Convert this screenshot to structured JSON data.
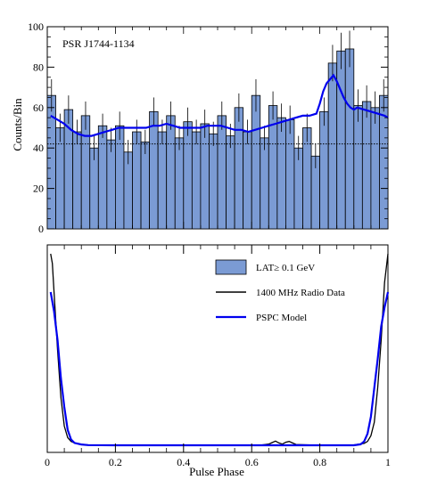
{
  "chart_data": [
    {
      "type": "bar",
      "annotation": "PSR J1744-1134",
      "ylabel": "Counts/Bin",
      "xlim": [
        0,
        1
      ],
      "ylim": [
        0,
        100
      ],
      "yticks": [
        0,
        20,
        40,
        60,
        80,
        100
      ],
      "baseline": 42,
      "x": [
        0.0125,
        0.0375,
        0.0625,
        0.0875,
        0.1125,
        0.1375,
        0.1625,
        0.1875,
        0.2125,
        0.2375,
        0.2625,
        0.2875,
        0.3125,
        0.3375,
        0.3625,
        0.3875,
        0.4125,
        0.4375,
        0.4625,
        0.4875,
        0.5125,
        0.5375,
        0.5625,
        0.5875,
        0.6125,
        0.6375,
        0.6625,
        0.6875,
        0.7125,
        0.7375,
        0.7625,
        0.7875,
        0.8125,
        0.8375,
        0.8625,
        0.8875,
        0.9125,
        0.9375,
        0.9625,
        0.9875
      ],
      "series": [
        {
          "values": [
            66,
            50,
            59,
            48,
            56,
            40,
            51,
            44,
            51,
            38,
            48,
            43,
            58,
            48,
            56,
            45,
            53,
            48,
            52,
            47,
            56,
            46,
            60,
            48,
            66,
            45,
            61,
            55,
            54,
            40,
            50,
            36,
            58,
            82,
            88,
            89,
            61,
            63,
            60,
            66
          ],
          "errors": [
            8,
            7,
            7,
            6,
            7,
            6,
            6,
            6,
            7,
            6,
            6,
            6,
            7,
            6,
            7,
            6,
            7,
            6,
            7,
            6,
            7,
            6,
            7,
            6,
            8,
            6,
            7,
            7,
            7,
            6,
            7,
            6,
            7,
            9,
            9,
            9,
            8,
            8,
            8,
            8
          ]
        },
        {
          "name": "PSPC Model",
          "x": [
            0.01,
            0.03,
            0.05,
            0.07,
            0.09,
            0.11,
            0.13,
            0.15,
            0.17,
            0.19,
            0.21,
            0.23,
            0.25,
            0.27,
            0.29,
            0.31,
            0.33,
            0.35,
            0.37,
            0.39,
            0.41,
            0.43,
            0.45,
            0.47,
            0.49,
            0.51,
            0.53,
            0.55,
            0.57,
            0.59,
            0.61,
            0.63,
            0.65,
            0.67,
            0.69,
            0.71,
            0.73,
            0.75,
            0.77,
            0.79,
            0.8,
            0.81,
            0.82,
            0.83,
            0.84,
            0.85,
            0.86,
            0.87,
            0.88,
            0.89,
            0.9,
            0.91,
            0.93,
            0.95,
            0.97,
            0.99,
            1.0
          ],
          "values": [
            56,
            54,
            52,
            49,
            47,
            46,
            46,
            47,
            48,
            49,
            50,
            50,
            50,
            50,
            50,
            51,
            51,
            52,
            51,
            50,
            50,
            50,
            50,
            51,
            51,
            51,
            50,
            49,
            49,
            48,
            49,
            50,
            51,
            52,
            53,
            54,
            55,
            56,
            56,
            57,
            62,
            68,
            72,
            74,
            76,
            73,
            69,
            65,
            62,
            60,
            59,
            60,
            59,
            58,
            57,
            56,
            55
          ]
        }
      ]
    },
    {
      "type": "line",
      "xlabel": "Pulse Phase",
      "xlim": [
        0,
        1
      ],
      "ylim": [
        0,
        1
      ],
      "xticks": [
        0,
        0.2,
        0.4,
        0.6,
        0.8,
        1
      ],
      "xtick_labels": [
        "0",
        "0.2",
        "0.4",
        "0.6",
        "0.8",
        "1"
      ],
      "legend_position": "top-right",
      "series": [
        {
          "name": "LAT≥ 0.1 GeV",
          "style": "filled-box"
        },
        {
          "name": "1400 MHz Radio Data",
          "x": [
            0.01,
            0.015,
            0.02,
            0.03,
            0.04,
            0.05,
            0.06,
            0.07,
            0.08,
            0.1,
            0.12,
            0.14,
            0.2,
            0.4,
            0.6,
            0.63,
            0.65,
            0.66,
            0.67,
            0.68,
            0.69,
            0.7,
            0.71,
            0.72,
            0.73,
            0.8,
            0.9,
            0.93,
            0.94,
            0.95,
            0.96,
            0.97,
            0.98,
            0.99,
            1.0
          ],
          "values": [
            1.0,
            0.95,
            0.8,
            0.5,
            0.25,
            0.1,
            0.04,
            0.02,
            0.012,
            0.005,
            0.002,
            0.001,
            0.0,
            0.0,
            0.0,
            0.002,
            0.006,
            0.014,
            0.022,
            0.012,
            0.006,
            0.016,
            0.02,
            0.012,
            0.004,
            0.0,
            0.002,
            0.01,
            0.02,
            0.05,
            0.12,
            0.3,
            0.55,
            0.85,
            1.0
          ]
        },
        {
          "name": "PSPC Model",
          "x": [
            0.01,
            0.02,
            0.03,
            0.04,
            0.05,
            0.06,
            0.07,
            0.08,
            0.1,
            0.12,
            0.2,
            0.4,
            0.6,
            0.8,
            0.9,
            0.92,
            0.93,
            0.94,
            0.95,
            0.96,
            0.97,
            0.98,
            0.99,
            1.0
          ],
          "values": [
            0.8,
            0.7,
            0.55,
            0.35,
            0.2,
            0.08,
            0.03,
            0.012,
            0.004,
            0.001,
            0.0,
            0.0,
            0.0,
            0.0,
            0.0,
            0.005,
            0.02,
            0.06,
            0.15,
            0.3,
            0.45,
            0.62,
            0.72,
            0.8
          ]
        }
      ],
      "colors": {
        "histogram_fill": "#7b9bd4",
        "histogram_edge": "#000000",
        "radio": "#000000",
        "model": "#0000ee"
      }
    }
  ]
}
